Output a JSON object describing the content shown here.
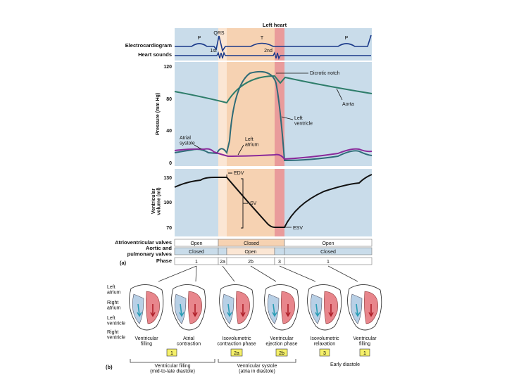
{
  "title": "Left heart",
  "ecg": {
    "row_label": "Electrocardiogram",
    "waves": [
      "P",
      "QRS",
      "T",
      "P"
    ]
  },
  "heart_sounds": {
    "row_label": "Heart sounds",
    "sounds": [
      "1st",
      "2nd"
    ]
  },
  "pressure_panel": {
    "axis_label": "Pressure (mm Hg)",
    "ticks": [
      "120",
      "80",
      "40",
      "0"
    ],
    "labels": {
      "dicrotic_notch": "Dicrotic notch",
      "aorta": "Aorta",
      "left_ventricle": "Left\nventricle",
      "atrial_systole": "Atrial\nsystole",
      "left_atrium": "Left\natrium"
    }
  },
  "volume_panel": {
    "axis_label": "Ventricular\nvolume (ml)",
    "ticks": [
      "130",
      "100",
      "70"
    ],
    "labels": {
      "edv": "EDV",
      "sv": "SV",
      "esv": "ESV"
    }
  },
  "valves": {
    "av": {
      "label": "Atrioventricular valves",
      "states": [
        "Open",
        "Closed",
        "Open"
      ]
    },
    "semilunar": {
      "label": "Aortic and\npulmonary valves",
      "states": [
        "Closed",
        "Open",
        "Closed"
      ]
    },
    "phase": {
      "label": "Phase",
      "values": [
        "1",
        "2a",
        "2b",
        "3",
        "1"
      ]
    },
    "part_a": "(a)"
  },
  "hearts": {
    "part_b": "(b)",
    "structure_labels": [
      "Left\natrium",
      "Right\natrium",
      "Left\nventricle",
      "Right\nventricle"
    ],
    "captions": [
      "Ventricular\nfilling",
      "Atrial\ncontraction",
      "Isovolumetric\ncontraction phase",
      "Ventricular\nejection phase",
      "Isovolumetric\nrelaxation",
      "Ventricular\nfilling"
    ],
    "phase_boxes": [
      "1",
      "2a",
      "2b",
      "3",
      "1"
    ],
    "groups": [
      "Ventricular filling\n(mid-to-late diastole)",
      "Ventricular systole\n(atria in diastole)",
      "Early diastole"
    ]
  },
  "colors": {
    "diastole_bg": "#c9dcea",
    "systole_bg": "#f6d2b2",
    "light_orange": "#fbe6d4",
    "isovol_red": "#e99b9b",
    "ecg_line": "#1b3a8a",
    "aorta_line": "#2e7d6a",
    "ventricle_line": "#2e6b77",
    "atrium_line": "#8a2a9a",
    "volume_line": "#111111",
    "phase_box": "#f5f06a"
  }
}
